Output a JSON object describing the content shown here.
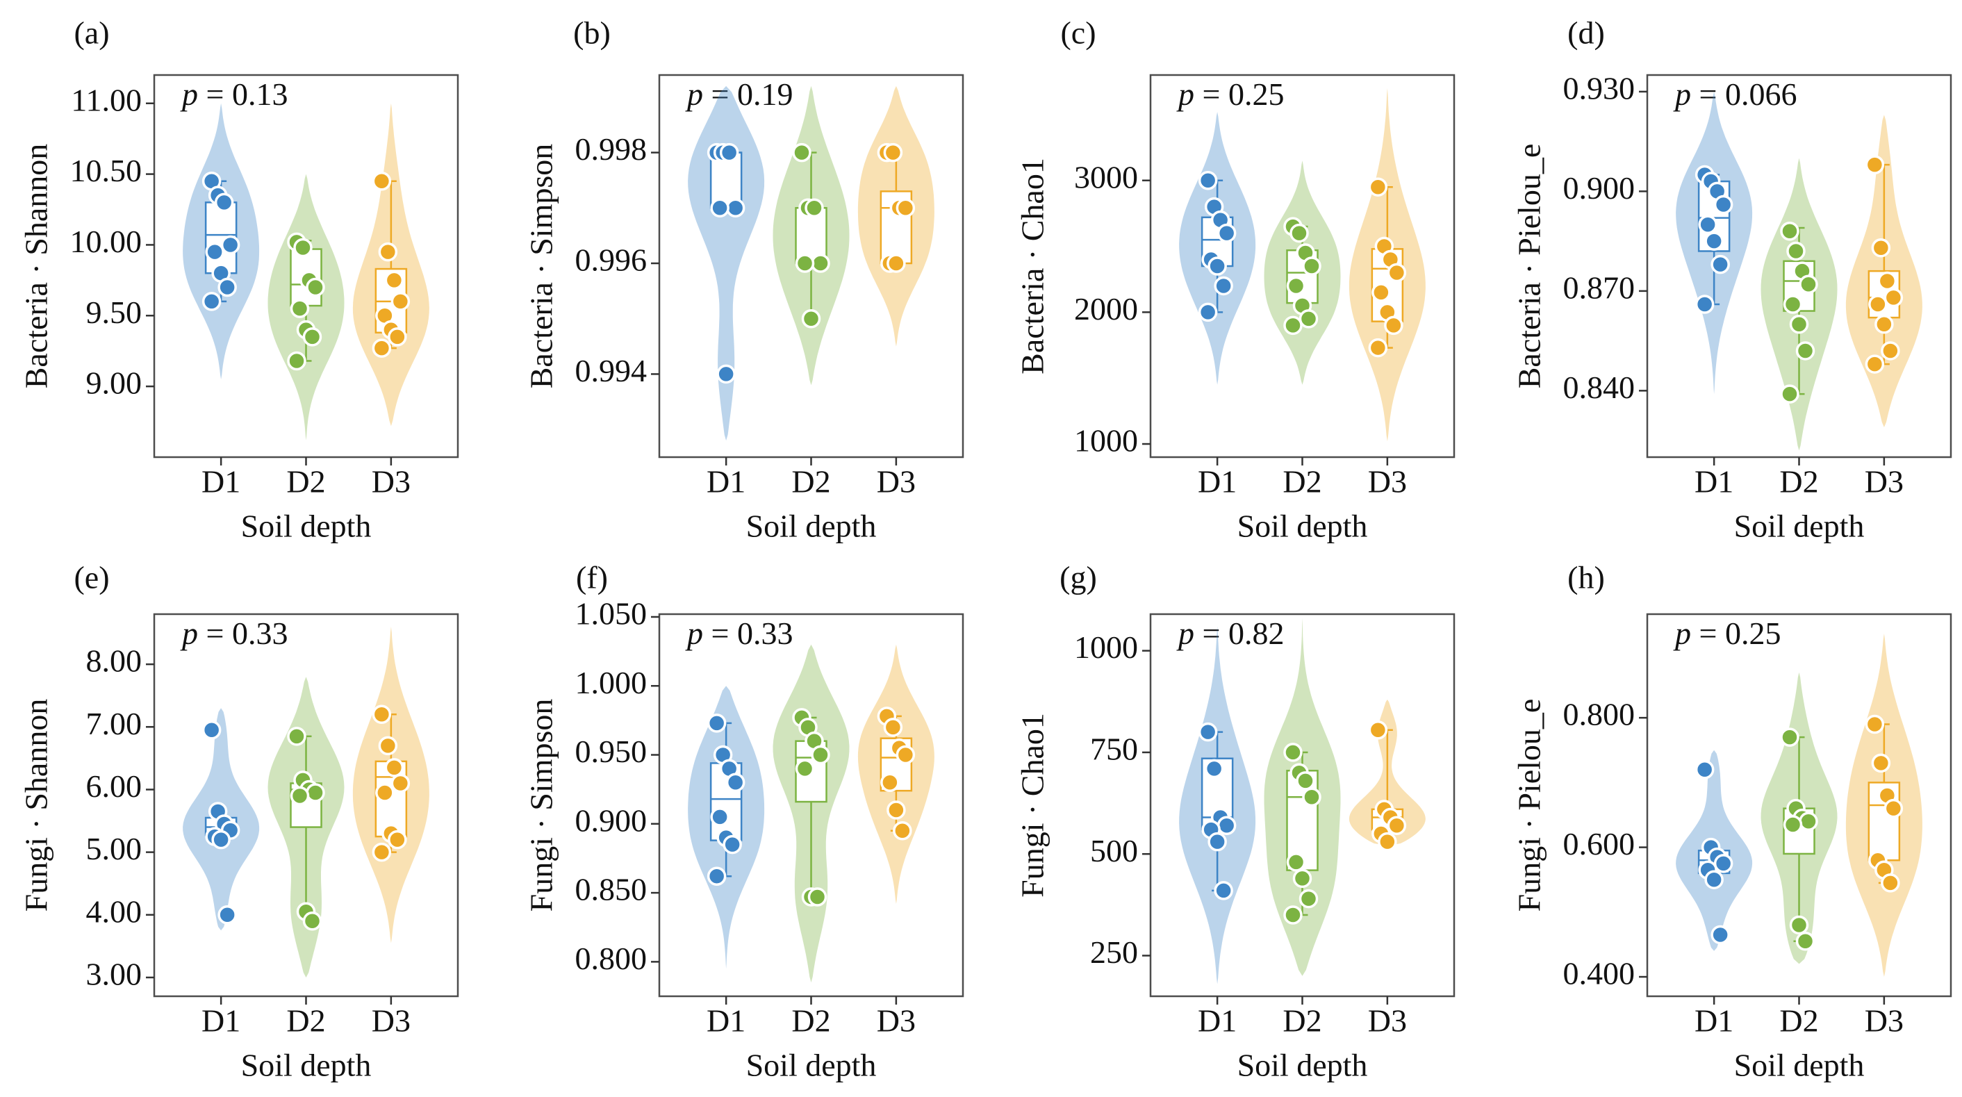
{
  "colors": {
    "D1": "#3d84c6",
    "D2": "#7cb342",
    "D3": "#eea925"
  },
  "chart_data": [
    {
      "type": "violin",
      "panel_label": "(a)",
      "p_prefix": "p",
      "p_text": " = 0.13",
      "ylabel": "Bacteria · Shannon",
      "xlabel": "Soil depth",
      "categories": [
        "D1",
        "D2",
        "D3"
      ],
      "yticks": [
        9.0,
        9.5,
        10.0,
        10.5,
        11.0
      ],
      "ytick_labels": [
        "9.00",
        "9.50",
        "10.00",
        "10.50",
        "11.00"
      ],
      "ylim": [
        8.5,
        11.2
      ],
      "series": [
        {
          "points": [
            10.45,
            10.35,
            10.3,
            10.0,
            9.95,
            9.8,
            9.7,
            9.6
          ],
          "box": [
            9.6,
            9.8,
            10.07,
            10.3,
            10.45
          ],
          "violin": [
            9.05,
            11.0
          ]
        },
        {
          "points": [
            10.02,
            9.98,
            9.75,
            9.7,
            9.55,
            9.4,
            9.35,
            9.18
          ],
          "box": [
            9.18,
            9.57,
            9.72,
            9.97,
            10.03
          ],
          "violin": [
            8.62,
            10.5
          ]
        },
        {
          "points": [
            10.45,
            9.95,
            9.75,
            9.6,
            9.5,
            9.4,
            9.35,
            9.27
          ],
          "box": [
            9.27,
            9.38,
            9.6,
            9.83,
            10.45
          ],
          "violin": [
            8.72,
            11.0
          ]
        }
      ]
    },
    {
      "type": "violin",
      "panel_label": "(b)",
      "p_prefix": "p",
      "p_text": " = 0.19",
      "ylabel": "Bacteria · Simpson",
      "xlabel": "Soil depth",
      "categories": [
        "D1",
        "D2",
        "D3"
      ],
      "yticks": [
        0.994,
        0.996,
        0.998
      ],
      "ytick_labels": [
        "0.994",
        "0.996",
        "0.998"
      ],
      "ylim": [
        0.9925,
        0.9994
      ],
      "series": [
        {
          "points": [
            0.998,
            0.998,
            0.998,
            0.997,
            0.997,
            0.994
          ],
          "box": [
            0.997,
            0.997,
            0.998,
            0.998,
            0.998
          ],
          "violin": [
            0.9928,
            0.9992
          ]
        },
        {
          "points": [
            0.998,
            0.997,
            0.997,
            0.996,
            0.996,
            0.995
          ],
          "box": [
            0.995,
            0.996,
            0.997,
            0.997,
            0.998
          ],
          "violin": [
            0.9938,
            0.9992
          ]
        },
        {
          "points": [
            0.998,
            0.998,
            0.997,
            0.997,
            0.996,
            0.996
          ],
          "box": [
            0.996,
            0.996,
            0.997,
            0.9973,
            0.998
          ],
          "violin": [
            0.9945,
            0.9992
          ]
        }
      ]
    },
    {
      "type": "violin",
      "panel_label": "(c)",
      "p_prefix": "p",
      "p_text": " = 0.25",
      "ylabel": "Bacteria · Chao1",
      "xlabel": "Soil depth",
      "categories": [
        "D1",
        "D2",
        "D3"
      ],
      "yticks": [
        1000,
        2000,
        3000
      ],
      "ytick_labels": [
        "1000",
        "2000",
        "3000"
      ],
      "ylim": [
        900,
        3800
      ],
      "series": [
        {
          "points": [
            3000,
            2800,
            2700,
            2600,
            2400,
            2350,
            2200,
            2000
          ],
          "box": [
            2000,
            2350,
            2550,
            2720,
            3000
          ],
          "violin": [
            1450,
            3520
          ]
        },
        {
          "points": [
            2650,
            2600,
            2450,
            2350,
            2200,
            2050,
            1950,
            1900
          ],
          "box": [
            1900,
            2070,
            2300,
            2470,
            2650
          ],
          "violin": [
            1450,
            3150
          ]
        },
        {
          "points": [
            2950,
            2500,
            2400,
            2300,
            2150,
            2000,
            1900,
            1730
          ],
          "box": [
            1730,
            1930,
            2330,
            2480,
            2950
          ],
          "violin": [
            1020,
            3700
          ]
        }
      ]
    },
    {
      "type": "violin",
      "panel_label": "(d)",
      "p_prefix": "p",
      "p_text": " = 0.066",
      "ylabel": "Bacteria · Pielou_e",
      "xlabel": "Soil depth",
      "categories": [
        "D1",
        "D2",
        "D3"
      ],
      "yticks": [
        0.84,
        0.87,
        0.9,
        0.93
      ],
      "ytick_labels": [
        "0.840",
        "0.870",
        "0.900",
        "0.930"
      ],
      "ylim": [
        0.82,
        0.935
      ],
      "series": [
        {
          "points": [
            0.905,
            0.903,
            0.9,
            0.896,
            0.89,
            0.885,
            0.878,
            0.866
          ],
          "box": [
            0.866,
            0.882,
            0.892,
            0.903,
            0.905
          ],
          "violin": [
            0.839,
            0.93
          ]
        },
        {
          "points": [
            0.888,
            0.882,
            0.876,
            0.872,
            0.866,
            0.86,
            0.852,
            0.839
          ],
          "box": [
            0.839,
            0.864,
            0.873,
            0.879,
            0.889
          ],
          "violin": [
            0.822,
            0.91
          ]
        },
        {
          "points": [
            0.908,
            0.883,
            0.873,
            0.868,
            0.866,
            0.86,
            0.852,
            0.848
          ],
          "box": [
            0.848,
            0.862,
            0.868,
            0.876,
            0.908
          ],
          "violin": [
            0.829,
            0.923
          ]
        }
      ]
    },
    {
      "type": "violin",
      "panel_label": "(e)",
      "p_prefix": "p",
      "p_text": " = 0.33",
      "ylabel": "Fungi · Shannon",
      "xlabel": "Soil depth",
      "categories": [
        "D1",
        "D2",
        "D3"
      ],
      "yticks": [
        3,
        4,
        5,
        6,
        7,
        8
      ],
      "ytick_labels": [
        "3.00",
        "4.00",
        "5.00",
        "6.00",
        "7.00",
        "8.00"
      ],
      "ylim": [
        2.7,
        8.8
      ],
      "series": [
        {
          "points": [
            6.95,
            5.65,
            5.45,
            5.35,
            5.25,
            5.2,
            4.0
          ],
          "box": [
            5.25,
            5.27,
            5.4,
            5.55,
            5.6
          ],
          "violin": [
            3.75,
            7.3
          ]
        },
        {
          "points": [
            6.85,
            6.15,
            6.0,
            5.95,
            5.9,
            4.05,
            3.9
          ],
          "box": [
            4.0,
            5.4,
            6.0,
            6.1,
            6.85
          ],
          "violin": [
            3.0,
            7.8
          ]
        },
        {
          "points": [
            7.2,
            6.7,
            6.35,
            6.1,
            5.95,
            5.3,
            5.2,
            5.0
          ],
          "box": [
            5.0,
            5.25,
            6.2,
            6.45,
            7.2
          ],
          "violin": [
            3.55,
            8.6
          ]
        }
      ]
    },
    {
      "type": "violin",
      "panel_label": "(f)",
      "p_prefix": "p",
      "p_text": " = 0.33",
      "ylabel": "Fungi · Simpson",
      "xlabel": "Soil depth",
      "categories": [
        "D1",
        "D2",
        "D3"
      ],
      "yticks": [
        0.8,
        0.85,
        0.9,
        0.95,
        1.0,
        1.05
      ],
      "ytick_labels": [
        "0.800",
        "0.850",
        "0.900",
        "0.950",
        "1.000",
        "1.050"
      ],
      "ylim": [
        0.775,
        1.052
      ],
      "series": [
        {
          "points": [
            0.973,
            0.95,
            0.94,
            0.93,
            0.905,
            0.89,
            0.885,
            0.862
          ],
          "box": [
            0.862,
            0.888,
            0.918,
            0.944,
            0.973
          ],
          "violin": [
            0.795,
            1.0
          ]
        },
        {
          "points": [
            0.977,
            0.97,
            0.96,
            0.95,
            0.94,
            0.847,
            0.847
          ],
          "box": [
            0.847,
            0.916,
            0.948,
            0.96,
            0.977
          ],
          "violin": [
            0.785,
            1.03
          ]
        },
        {
          "points": [
            0.978,
            0.97,
            0.955,
            0.95,
            0.93,
            0.91,
            0.895
          ],
          "box": [
            0.895,
            0.924,
            0.948,
            0.962,
            0.978
          ],
          "violin": [
            0.842,
            1.03
          ]
        }
      ]
    },
    {
      "type": "violin",
      "panel_label": "(g)",
      "p_prefix": "p",
      "p_text": " = 0.82",
      "ylabel": "Fungi · Chao1",
      "xlabel": "Soil depth",
      "categories": [
        "D1",
        "D2",
        "D3"
      ],
      "yticks": [
        250,
        500,
        750,
        1000
      ],
      "ytick_labels": [
        "250",
        "500",
        "750",
        "1000"
      ],
      "ylim": [
        150,
        1090
      ],
      "series": [
        {
          "points": [
            800,
            710,
            590,
            570,
            560,
            530,
            410
          ],
          "box": [
            410,
            560,
            590,
            735,
            800
          ],
          "violin": [
            180,
            1060
          ]
        },
        {
          "points": [
            750,
            700,
            680,
            640,
            480,
            440,
            390,
            350
          ],
          "box": [
            350,
            460,
            640,
            705,
            750
          ],
          "violin": [
            200,
            1080
          ]
        },
        {
          "points": [
            805,
            610,
            590,
            570,
            550,
            530
          ],
          "box": [
            530,
            560,
            590,
            610,
            805
          ],
          "violin": [
            520,
            880
          ]
        }
      ]
    },
    {
      "type": "violin",
      "panel_label": "(h)",
      "p_prefix": "p",
      "p_text": " = 0.25",
      "ylabel": "Fungi · Pielou_e",
      "xlabel": "Soil depth",
      "categories": [
        "D1",
        "D2",
        "D3"
      ],
      "yticks": [
        0.4,
        0.6,
        0.8
      ],
      "ytick_labels": [
        "0.400",
        "0.600",
        "0.800"
      ],
      "ylim": [
        0.37,
        0.96
      ],
      "series": [
        {
          "points": [
            0.72,
            0.6,
            0.585,
            0.575,
            0.565,
            0.55,
            0.465
          ],
          "box": [
            0.55,
            0.56,
            0.58,
            0.595,
            0.6
          ],
          "violin": [
            0.44,
            0.75
          ]
        },
        {
          "points": [
            0.77,
            0.66,
            0.645,
            0.64,
            0.635,
            0.48,
            0.455
          ],
          "box": [
            0.455,
            0.59,
            0.64,
            0.66,
            0.77
          ],
          "violin": [
            0.42,
            0.87
          ]
        },
        {
          "points": [
            0.79,
            0.73,
            0.68,
            0.66,
            0.58,
            0.565,
            0.545
          ],
          "box": [
            0.545,
            0.58,
            0.665,
            0.7,
            0.79
          ],
          "violin": [
            0.4,
            0.93
          ]
        }
      ]
    }
  ]
}
